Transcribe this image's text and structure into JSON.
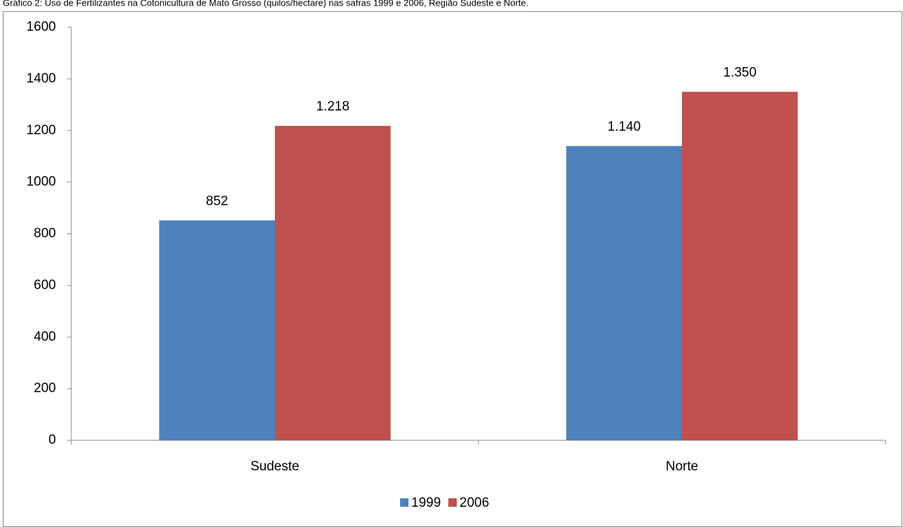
{
  "chart_data": {
    "type": "bar",
    "title": "Gráfico 2: Uso de Fertilizantes na Cotonicultura de Mato Grosso (quilos/hectare) nas safras 1999 e 2006, Região Sudeste e Norte.",
    "categories": [
      "Sudeste",
      "Norte"
    ],
    "series": [
      {
        "name": "1999",
        "color": "#4f81bd",
        "values": [
          852,
          1140
        ],
        "value_labels": [
          "852",
          "1.140"
        ]
      },
      {
        "name": "2006",
        "color": "#c0504d",
        "values": [
          1218,
          1350
        ],
        "value_labels": [
          "1.218",
          "1.350"
        ]
      }
    ],
    "ylim": [
      0,
      1600
    ],
    "yticks": [
      0,
      200,
      400,
      600,
      800,
      1000,
      1200,
      1400,
      1600
    ],
    "grid": false,
    "legend": "bottom"
  }
}
